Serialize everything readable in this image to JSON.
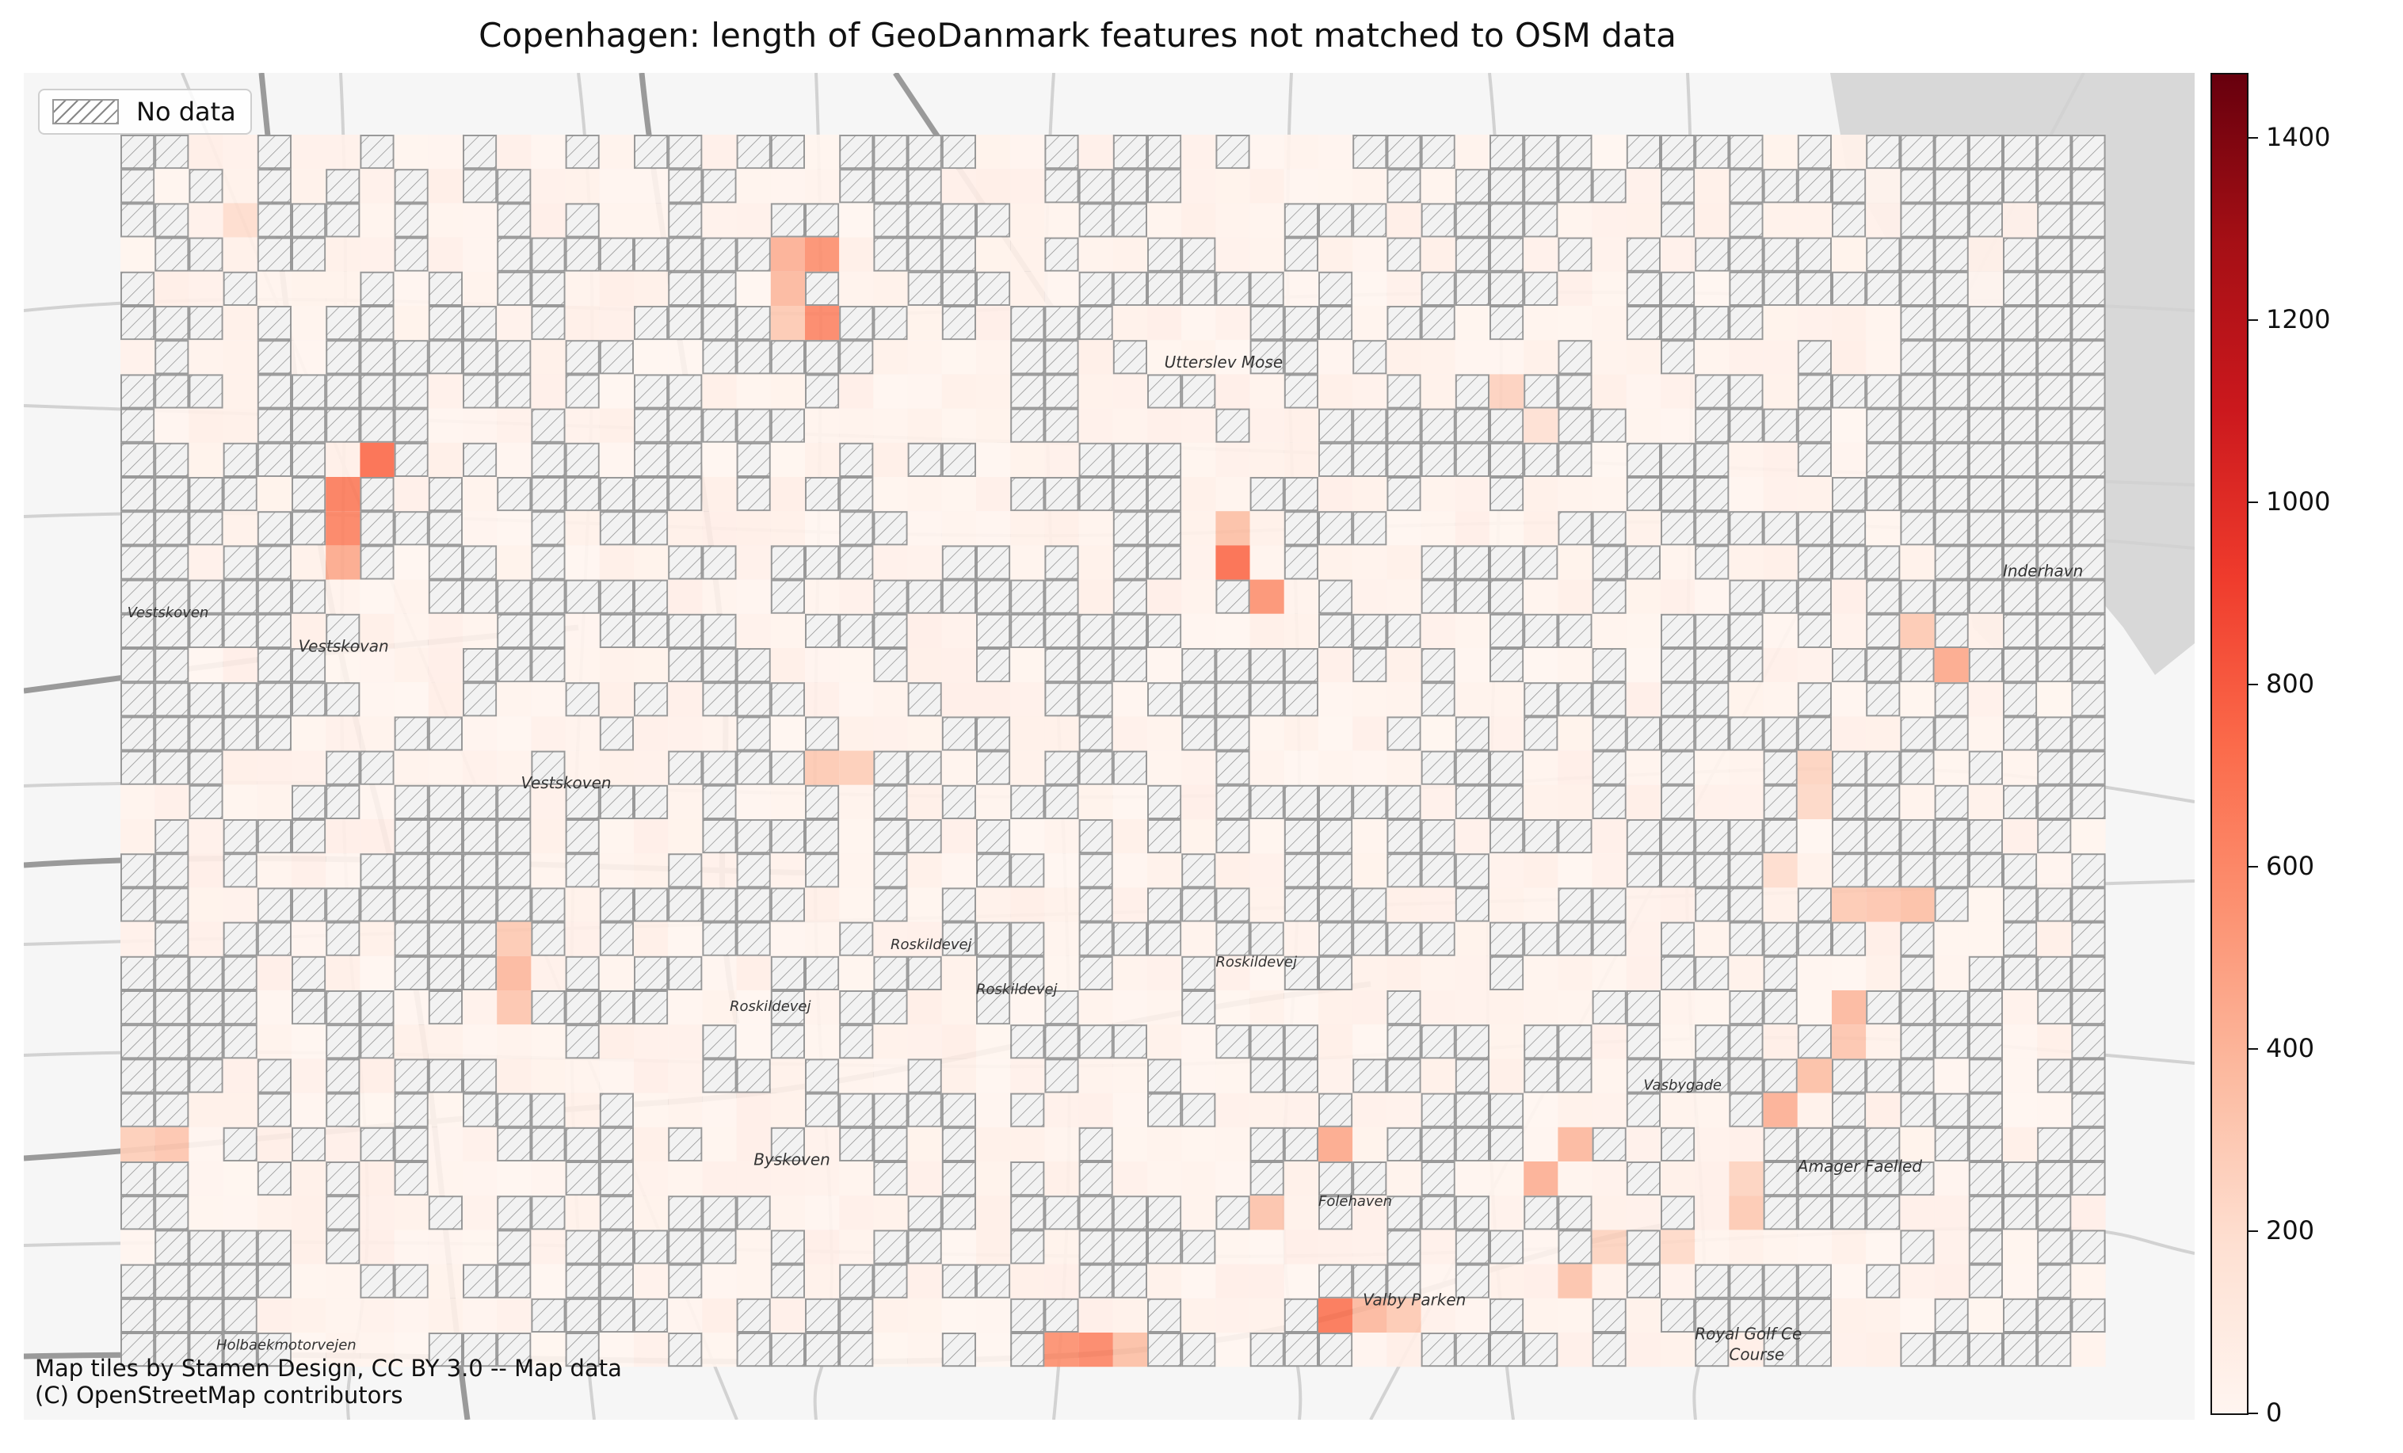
{
  "chart_data": {
    "type": "heatmap",
    "title": "Copenhagen: length of GeoDanmark features not matched to OSM data",
    "colormap": "Reds",
    "colorbar": {
      "min": 0,
      "max": 1470,
      "ticks": [
        0,
        200,
        400,
        600,
        800,
        1000,
        1200,
        1400
      ]
    },
    "legend": {
      "label": "No data",
      "placement": "top-left",
      "pattern": "hatched grey outline"
    },
    "grid": {
      "rows": 36,
      "cols": 58
    },
    "no_data_fraction": 0.55,
    "high_cells": [
      {
        "row": 3,
        "col": 19,
        "value": 420
      },
      {
        "row": 3,
        "col": 20,
        "value": 560
      },
      {
        "row": 4,
        "col": 19,
        "value": 380
      },
      {
        "row": 5,
        "col": 20,
        "value": 600
      },
      {
        "row": 5,
        "col": 19,
        "value": 300
      },
      {
        "row": 9,
        "col": 7,
        "value": 720
      },
      {
        "row": 10,
        "col": 6,
        "value": 650
      },
      {
        "row": 11,
        "col": 6,
        "value": 620
      },
      {
        "row": 12,
        "col": 6,
        "value": 450
      },
      {
        "row": 12,
        "col": 32,
        "value": 720
      },
      {
        "row": 13,
        "col": 33,
        "value": 550
      },
      {
        "row": 11,
        "col": 32,
        "value": 350
      },
      {
        "row": 15,
        "col": 53,
        "value": 450
      },
      {
        "row": 14,
        "col": 52,
        "value": 300
      },
      {
        "row": 18,
        "col": 20,
        "value": 300
      },
      {
        "row": 18,
        "col": 21,
        "value": 280
      },
      {
        "row": 22,
        "col": 52,
        "value": 350
      },
      {
        "row": 22,
        "col": 51,
        "value": 320
      },
      {
        "row": 22,
        "col": 50,
        "value": 300
      },
      {
        "row": 21,
        "col": 48,
        "value": 200
      },
      {
        "row": 24,
        "col": 11,
        "value": 380
      },
      {
        "row": 23,
        "col": 11,
        "value": 300
      },
      {
        "row": 25,
        "col": 50,
        "value": 380
      },
      {
        "row": 26,
        "col": 50,
        "value": 320
      },
      {
        "row": 27,
        "col": 49,
        "value": 350
      },
      {
        "row": 28,
        "col": 48,
        "value": 420
      },
      {
        "row": 25,
        "col": 11,
        "value": 320
      },
      {
        "row": 29,
        "col": 35,
        "value": 450
      },
      {
        "row": 29,
        "col": 42,
        "value": 380
      },
      {
        "row": 30,
        "col": 41,
        "value": 420
      },
      {
        "row": 31,
        "col": 33,
        "value": 330
      },
      {
        "row": 30,
        "col": 47,
        "value": 250
      },
      {
        "row": 31,
        "col": 47,
        "value": 300
      },
      {
        "row": 32,
        "col": 45,
        "value": 220
      },
      {
        "row": 32,
        "col": 43,
        "value": 250
      },
      {
        "row": 33,
        "col": 42,
        "value": 330
      },
      {
        "row": 34,
        "col": 35,
        "value": 680
      },
      {
        "row": 34,
        "col": 36,
        "value": 380
      },
      {
        "row": 34,
        "col": 37,
        "value": 300
      },
      {
        "row": 35,
        "col": 27,
        "value": 560
      },
      {
        "row": 35,
        "col": 28,
        "value": 600
      },
      {
        "row": 35,
        "col": 29,
        "value": 350
      },
      {
        "row": 29,
        "col": 1,
        "value": 320
      },
      {
        "row": 29,
        "col": 0,
        "value": 280
      },
      {
        "row": 2,
        "col": 3,
        "value": 200
      },
      {
        "row": 18,
        "col": 49,
        "value": 250
      },
      {
        "row": 19,
        "col": 49,
        "value": 230
      },
      {
        "row": 7,
        "col": 40,
        "value": 260
      },
      {
        "row": 8,
        "col": 41,
        "value": 180
      }
    ]
  },
  "map_labels": [
    {
      "text": "Utterslev Mose",
      "col": 30.5,
      "row": 6.8,
      "size": 20
    },
    {
      "text": "Vestskoven",
      "col": 0.2,
      "row": 14.1,
      "size": 18
    },
    {
      "text": "Vestskovan",
      "col": 5.2,
      "row": 15.1,
      "size": 20
    },
    {
      "text": "Vestskoven",
      "col": 11.7,
      "row": 19.1,
      "size": 20
    },
    {
      "text": "Roskildevej",
      "col": 22.5,
      "row": 23.8,
      "size": 18
    },
    {
      "text": "Roskildevej",
      "col": 25.0,
      "row": 25.1,
      "size": 18
    },
    {
      "text": "Roskildevej",
      "col": 32.0,
      "row": 24.3,
      "size": 18
    },
    {
      "text": "Roskildevej",
      "col": 17.8,
      "row": 25.6,
      "size": 18
    },
    {
      "text": "Byskoven",
      "col": 18.5,
      "row": 30.1,
      "size": 20
    },
    {
      "text": "Amager Faelled",
      "col": 49.0,
      "row": 30.3,
      "size": 20
    },
    {
      "text": "Valby Parken",
      "col": 36.3,
      "row": 34.2,
      "size": 20
    },
    {
      "text": "Royal Golf Ce",
      "col": 46.0,
      "row": 35.2,
      "size": 20
    },
    {
      "text": "Course",
      "col": 47.0,
      "row": 35.8,
      "size": 20
    },
    {
      "text": "Inderhavn",
      "col": 55.0,
      "row": 12.9,
      "size": 20
    },
    {
      "text": "Holbaekmotorvejen",
      "col": 2.8,
      "row": 35.5,
      "size": 18
    },
    {
      "text": "Folehaven",
      "col": 35.0,
      "row": 31.3,
      "size": 18
    },
    {
      "text": "Vasbygade",
      "col": 44.5,
      "row": 27.9,
      "size": 18
    }
  ],
  "legend": {
    "label": "No data"
  },
  "attribution": [
    "Map tiles by Stamen Design, CC BY 3.0 -- Map data",
    "(C) OpenStreetMap contributors"
  ],
  "colors": {
    "nodata_fill": "#f2f2f2",
    "nodata_stroke": "#999999",
    "nodata_hatch": "#777777",
    "low_fill": "#fff0e8",
    "background": "#f6f6f6",
    "road": "#d2d2d2",
    "motorway": "#9a9a9a",
    "water": "#d8d8d8"
  }
}
